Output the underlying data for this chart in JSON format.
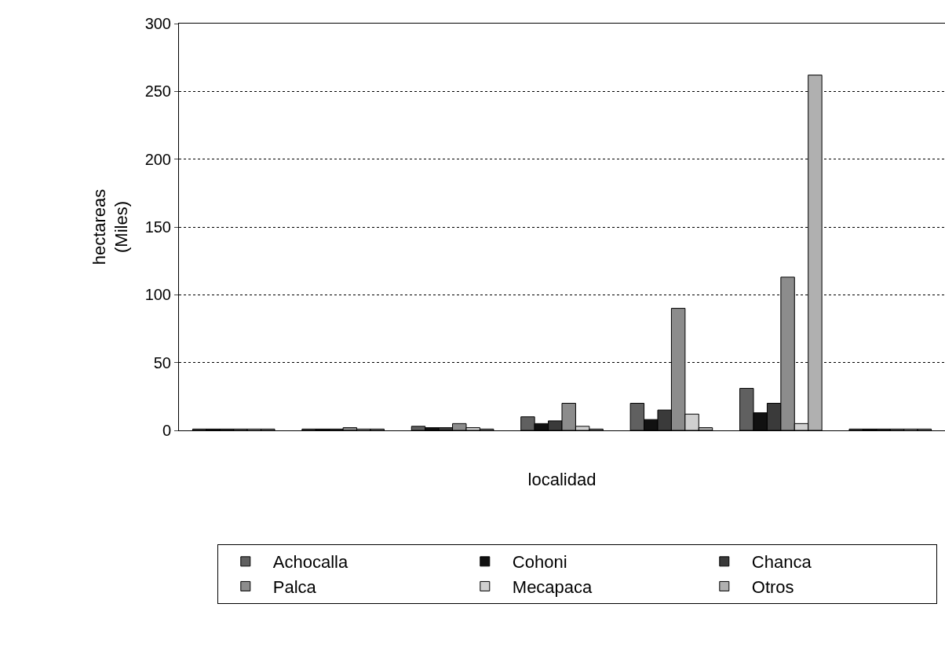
{
  "chart_data": {
    "type": "bar",
    "xlabel": "localidad",
    "ylabel": "hectareas\n(Miles)",
    "categories": [
      null,
      null,
      null,
      null,
      null,
      null,
      null
    ],
    "series": [
      {
        "name": "Achocalla",
        "color": "#606060",
        "values": [
          1,
          1,
          3,
          10,
          20,
          31,
          1
        ]
      },
      {
        "name": "Cohoni",
        "color": "#111111",
        "values": [
          1,
          1,
          2,
          5,
          8,
          13,
          1
        ]
      },
      {
        "name": "Chanca",
        "color": "#3a3a3a",
        "values": [
          1,
          1,
          2,
          7,
          15,
          20,
          1
        ]
      },
      {
        "name": "Palca",
        "color": "#8c8c8c",
        "values": [
          1,
          2,
          5,
          20,
          90,
          113,
          1
        ]
      },
      {
        "name": "Mecapaca",
        "color": "#d0d0d0",
        "values": [
          1,
          1,
          2,
          3,
          12,
          5,
          1
        ]
      },
      {
        "name": "Otros",
        "color": "#b0b0b0",
        "values": [
          1,
          1,
          1,
          1,
          2,
          262,
          1
        ]
      }
    ],
    "ylim": [
      0,
      300
    ],
    "yticks": [
      0,
      50,
      100,
      150,
      200,
      250,
      300
    ],
    "grid": "y",
    "legend": "bottom"
  }
}
